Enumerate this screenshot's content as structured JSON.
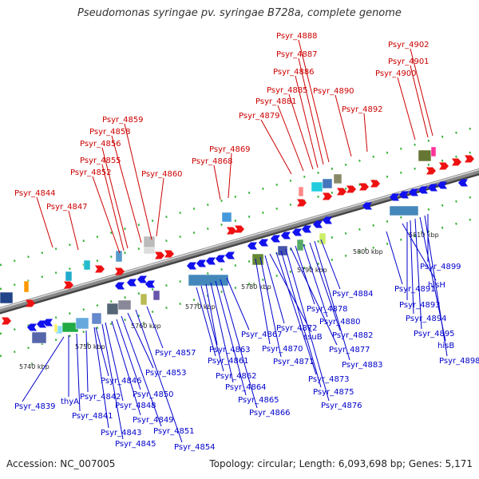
{
  "title": "Pseudomonas syringae pv. syringae B728a, complete genome",
  "footer": {
    "accession": "Accession: NC_007005",
    "info": "Topology: circular; Length: 6,093,698 bp; Genes: 5,171"
  },
  "colors": {
    "forward": "#ee1111",
    "reverse": "#1111ee",
    "axis": "#888888",
    "tick": "#119911"
  },
  "scale_labels": [
    "5740 kbp",
    "5750 kbp",
    "5760 kbp",
    "5770 kbp",
    "5780 kbp",
    "5790 kbp",
    "5800 kbp",
    "5810 kbp"
  ],
  "forward_genes": [
    "Psyr_4844",
    "Psyr_4847",
    "Psyr_4852",
    "Psyr_4855",
    "Psyr_4856",
    "Psyr_4858",
    "Psyr_4859",
    "Psyr_4860",
    "Psyr_4868",
    "Psyr_4869",
    "Psyr_4879",
    "Psyr_4881",
    "Psyr_4885",
    "Psyr_4886",
    "Psyr_4887",
    "Psyr_4888",
    "Psyr_4890",
    "Psyr_4892",
    "Psyr_4900",
    "Psyr_4901",
    "Psyr_4902"
  ],
  "reverse_genes": [
    "Psyr_4839",
    "thyA",
    "Psyr_4841",
    "Psyr_4842",
    "Psyr_4843",
    "Psyr_4845",
    "Psyr_4846",
    "Psyr_4848",
    "Psyr_4849",
    "Psyr_4850",
    "Psyr_4851",
    "Psyr_4853",
    "Psyr_4854",
    "Psyr_4857",
    "Psyr_4861",
    "Psyr_4862",
    "Psyr_4863",
    "Psyr_4864",
    "Psyr_4865",
    "Psyr_4866",
    "Psyr_4867",
    "Psyr_4870",
    "Psyr_4871",
    "Psyr_4872",
    "ssuB",
    "Psyr_4873",
    "Psyr_4875",
    "Psyr_4876",
    "Psyr_4877",
    "Psyr_4878",
    "Psyr_4880",
    "Psyr_4882",
    "Psyr_4883",
    "Psyr_4884",
    "Psyr_4891",
    "hisH",
    "Psyr_4893",
    "Psyr_4894",
    "Psyr_4895",
    "hisB",
    "Psyr_4898",
    "Psyr_4899"
  ]
}
